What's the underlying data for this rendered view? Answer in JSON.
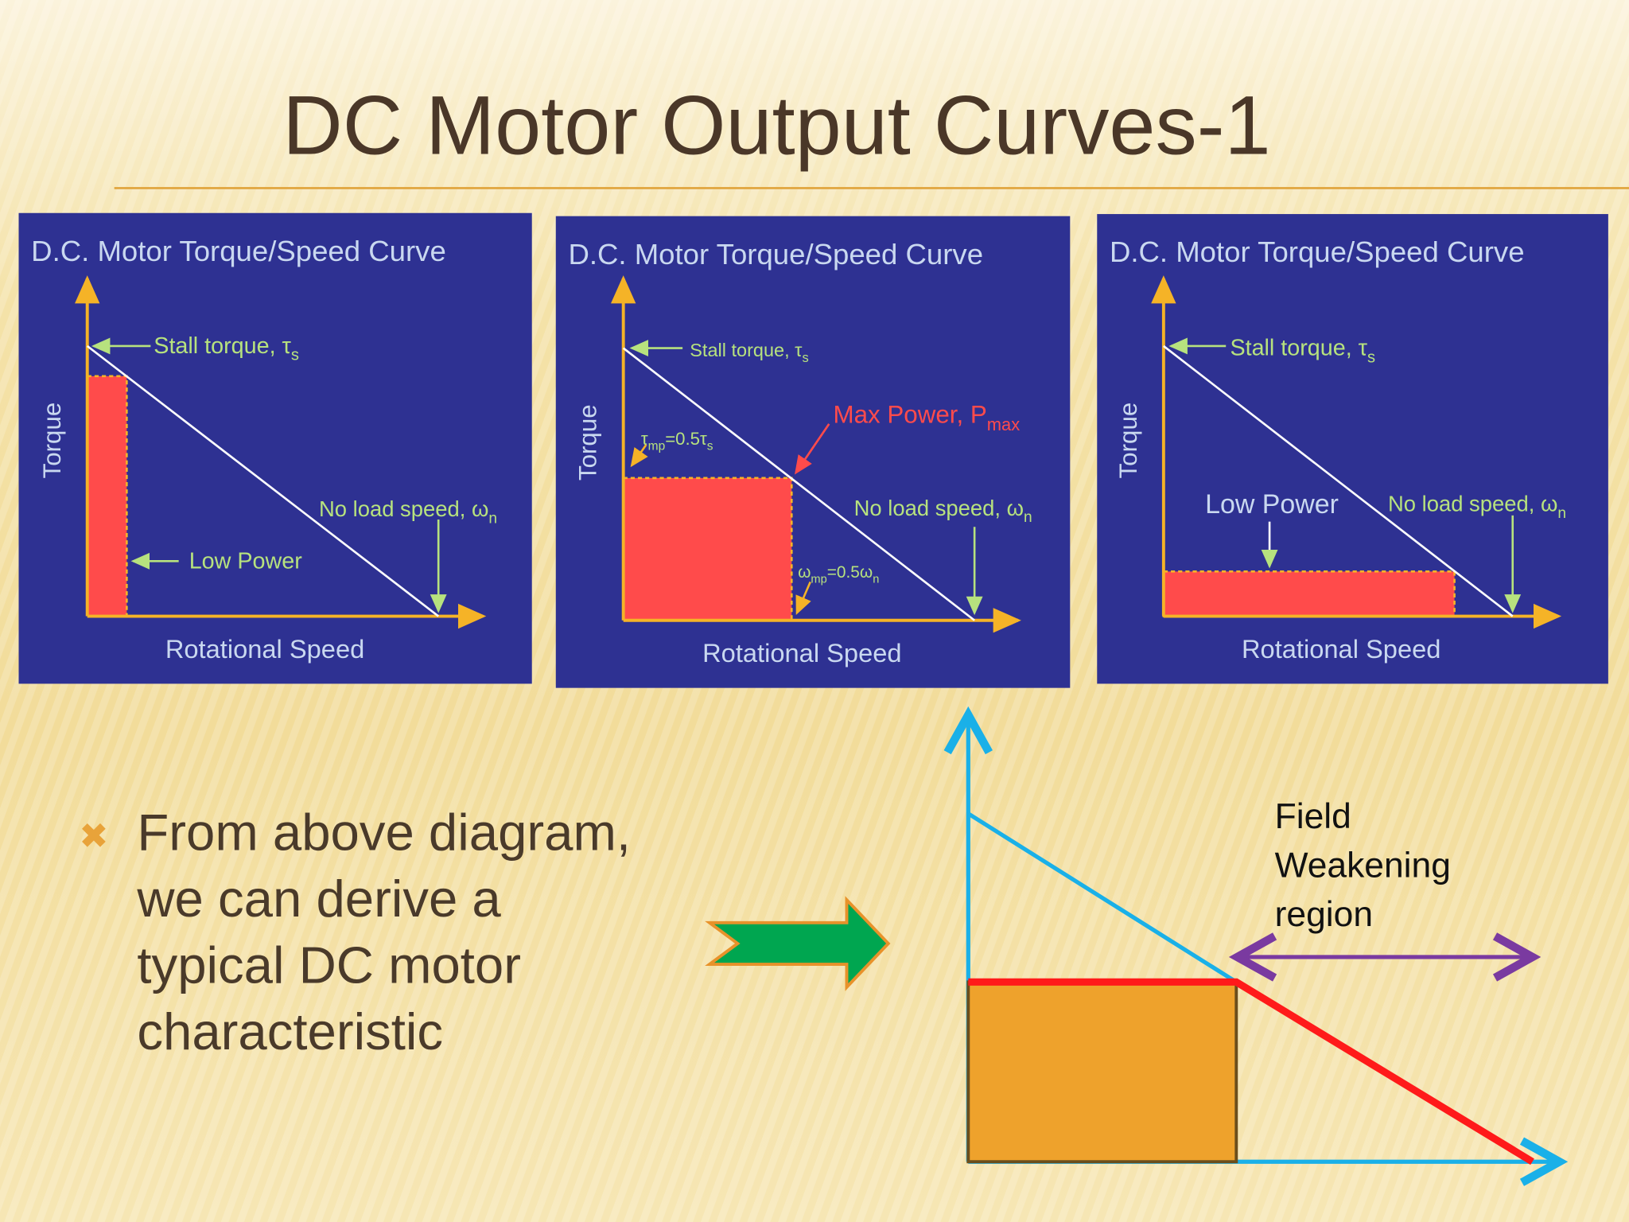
{
  "title": "DC Motor Output Curves-1",
  "panels": [
    {
      "title": "D.C. Motor Torque/Speed Curve",
      "y_axis": "Torque",
      "x_axis": "Rotational Speed",
      "labels": [
        [
          {
            "text": "Stall torque, τ"
          },
          {
            "text": "s",
            "sub": true
          }
        ],
        [
          {
            "text": "No load speed, ω"
          },
          {
            "text": "n",
            "sub": true
          }
        ],
        [
          {
            "text": "Low Power"
          }
        ]
      ]
    },
    {
      "title": "D.C. Motor Torque/Speed Curve",
      "y_axis": "Torque",
      "x_axis": "Rotational Speed",
      "labels": [
        [
          {
            "text": "Stall torque, τ"
          },
          {
            "text": "s",
            "sub": true
          }
        ],
        [
          {
            "text": "Max Power, P"
          },
          {
            "text": "max",
            "sub": true
          }
        ],
        [
          {
            "text": "τ"
          },
          {
            "text": "mp",
            "sub": true
          },
          {
            "text": "=0.5τ"
          },
          {
            "text": "s",
            "sub": true
          }
        ],
        [
          {
            "text": "No load speed, ω"
          },
          {
            "text": "n",
            "sub": true
          }
        ],
        [
          {
            "text": "ω"
          },
          {
            "text": "mp",
            "sub": true
          },
          {
            "text": "=0.5ω"
          },
          {
            "text": "n",
            "sub": true
          }
        ]
      ]
    },
    {
      "title": "D.C. Motor Torque/Speed Curve",
      "y_axis": "Torque",
      "x_axis": "Rotational Speed",
      "labels": [
        [
          {
            "text": "Stall torque, τ"
          },
          {
            "text": "s",
            "sub": true
          }
        ],
        [
          {
            "text": "Low Power"
          }
        ],
        [
          {
            "text": "No load speed, ω"
          },
          {
            "text": "n",
            "sub": true
          }
        ]
      ]
    }
  ],
  "bullet": [
    "From above diagram,",
    "we can derive a",
    "typical DC motor",
    "characteristic"
  ],
  "diagram": {
    "region_label": [
      "Field",
      "Weakening",
      "region"
    ]
  }
}
